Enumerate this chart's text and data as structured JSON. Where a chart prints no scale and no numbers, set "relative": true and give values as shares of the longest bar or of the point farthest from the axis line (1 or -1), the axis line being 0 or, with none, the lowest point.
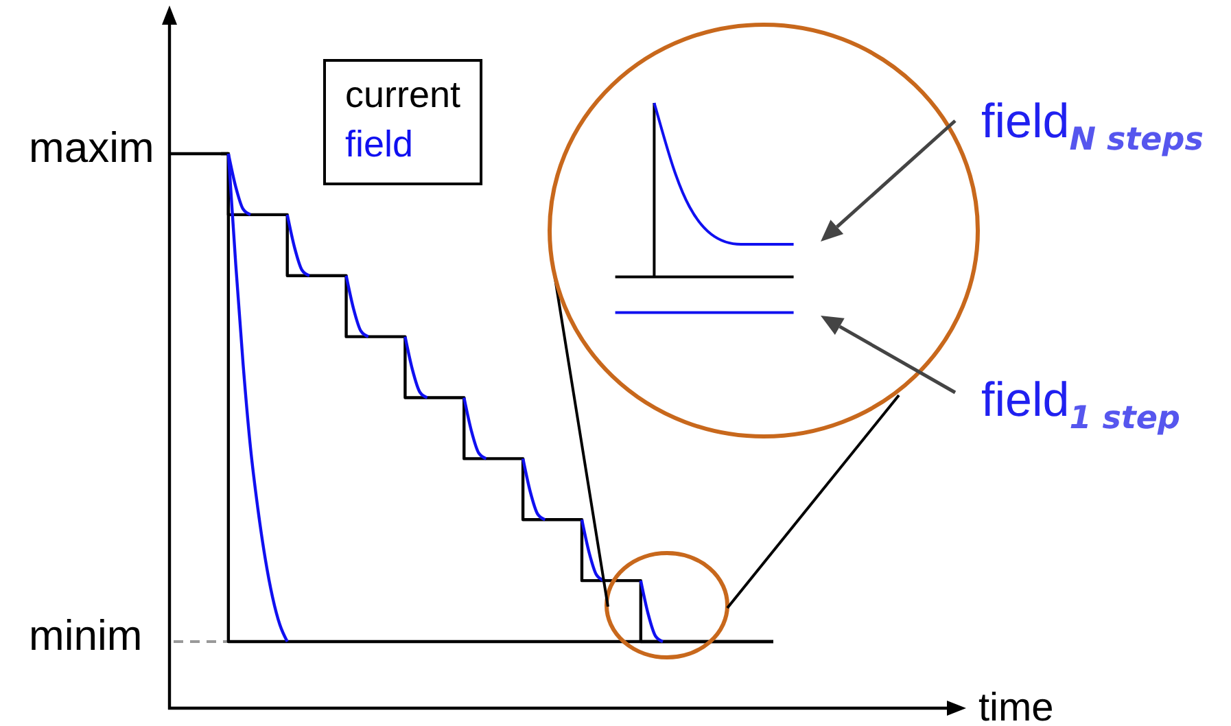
{
  "chart_data": {
    "type": "line",
    "relative": true,
    "legend": "top left",
    "categories": [
      null,
      null,
      null,
      null,
      null,
      null,
      null,
      null,
      null,
      null,
      null,
      null,
      null,
      null,
      null,
      null,
      null,
      null,
      null,
      null,
      null,
      null,
      null,
      null,
      null,
      null,
      null,
      null,
      null,
      null,
      null,
      null,
      null,
      null,
      null,
      null,
      null,
      null,
      null,
      null,
      null,
      null,
      null,
      null,
      null,
      null,
      null,
      null,
      null,
      null,
      null,
      null,
      null,
      null,
      null,
      null,
      null,
      null,
      null,
      null,
      null,
      null,
      null,
      null,
      null,
      null,
      null,
      null,
      null,
      null,
      null,
      null,
      null,
      null,
      null,
      null,
      null,
      null,
      null,
      null,
      null,
      null,
      null
    ],
    "series": [
      {
        "name": "current",
        "type": "step",
        "color": "#000000",
        "values": [
          1,
          1,
          1,
          1,
          1,
          1,
          1,
          1,
          0.89,
          0.89,
          0.89,
          0.89,
          0.89,
          0.89,
          0.89,
          0.89,
          0.78,
          0.78,
          0.78,
          0.78,
          0.78,
          0.78,
          0.78,
          0.78,
          0.67,
          0.67,
          0.67,
          0.67,
          0.67,
          0.67,
          0.67,
          0.67,
          0.56,
          0.56,
          0.56,
          0.56,
          0.56,
          0.56,
          0.56,
          0.56,
          0.45,
          0.45,
          0.45,
          0.45,
          0.45,
          0.45,
          0.45,
          0.45,
          0.34,
          0.34,
          0.34,
          0.34,
          0.34,
          0.34,
          0.34,
          0.34,
          0.23,
          0.23,
          0.23,
          0.23,
          0.23,
          0.23,
          0.23,
          0.23,
          0.12,
          0.12,
          0.12,
          0.12,
          0.12,
          0.12,
          0.12,
          0.12,
          0.12,
          0.12,
          0.12,
          0.12,
          0.12,
          0.12,
          0.12,
          0.12,
          0.12,
          0.12,
          0.12
        ]
      },
      {
        "type": "step",
        "color": "#000000",
        "values": [
          null,
          null,
          null,
          null,
          null,
          null,
          null,
          1,
          0.12,
          0.12,
          0.12,
          0.12,
          0.12,
          0.12,
          0.12,
          0.12,
          0.12,
          0.12,
          0.12,
          0.12,
          0.12,
          0.12,
          0.12,
          0.12,
          0.12,
          0.12,
          0.12,
          0.12,
          0.12,
          0.12,
          0.12,
          0.12,
          0.12,
          0.12,
          0.12,
          0.12,
          0.12,
          0.12,
          0.12,
          0.12,
          0.12,
          0.12,
          0.12,
          0.12,
          0.12,
          0.12,
          0.12,
          0.12,
          0.12,
          0.12,
          0.12,
          0.12,
          0.12,
          0.12,
          0.12,
          0.12,
          0.12,
          0.12,
          0.12,
          0.12,
          0.12,
          0.12,
          0.12,
          0.12,
          0.12,
          0.12,
          0.12,
          0.12,
          0.12,
          0.12,
          0.12,
          0.12,
          0.12,
          0.12,
          0.12,
          0.12,
          0.12,
          0.12,
          0.12,
          0.12,
          0.12,
          0.12,
          0.12
        ]
      },
      {
        "name": "field",
        "type": "line",
        "color": "#1010f0",
        "values": [
          null,
          null,
          null,
          null,
          null,
          null,
          null,
          null,
          1,
          0.94,
          0.9,
          0.89,
          null,
          null,
          null,
          null,
          0.89,
          0.83,
          0.79,
          0.78,
          null,
          null,
          null,
          null,
          0.78,
          0.72,
          0.68,
          0.67,
          null,
          null,
          null,
          null,
          0.67,
          0.61,
          0.57,
          0.56,
          null,
          null,
          null,
          null,
          0.56,
          0.5,
          0.46,
          0.45,
          null,
          null,
          null,
          null,
          0.45,
          0.39,
          0.35,
          0.34,
          null,
          null,
          null,
          null,
          0.34,
          0.28,
          0.24,
          0.23,
          null,
          null,
          null,
          null,
          0.23,
          0.17,
          0.13,
          0.12,
          null,
          null,
          null,
          null,
          null,
          null,
          null,
          null,
          null,
          null,
          null,
          null,
          null,
          null,
          null
        ]
      },
      {
        "type": "line",
        "color": "#1010f0",
        "values": [
          null,
          null,
          null,
          null,
          null,
          null,
          null,
          null,
          1,
          0.8,
          0.62,
          0.47,
          0.36,
          0.27,
          0.2,
          0.15,
          0.12,
          null,
          null,
          null,
          null,
          null,
          null,
          null,
          null,
          null,
          null,
          null,
          null,
          null,
          null,
          null,
          null,
          null,
          null,
          null,
          null,
          null,
          null,
          null,
          null,
          null,
          null,
          null,
          null,
          null,
          null,
          null,
          null,
          null,
          null,
          null,
          null,
          null,
          null,
          null,
          null,
          null,
          null,
          null,
          null,
          null,
          null,
          null,
          null,
          null,
          null,
          null,
          null,
          null,
          null,
          null,
          null,
          null,
          null,
          null,
          null,
          null,
          null,
          null,
          null,
          null,
          null
        ]
      }
    ],
    "ref_lines": [
      {
        "axis": "y",
        "value": 0.12,
        "label": "minim",
        "line_style": "dashed",
        "color": "#999999"
      }
    ],
    "annotations": [
      "maxim",
      "time",
      "field$_{N steps}$",
      "field$_{1 step}$"
    ]
  }
}
